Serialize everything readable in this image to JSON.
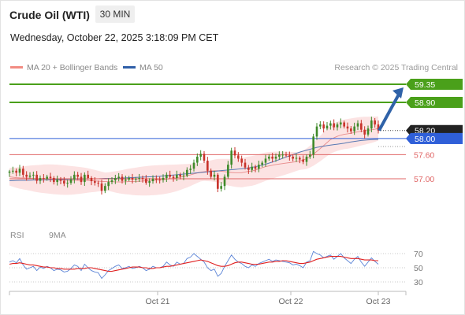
{
  "header": {
    "title": "Crude Oil (WTI)",
    "timeframe": "30 MIN",
    "datetime": "Wednesday, October 22, 2025 3:18:09 PM CET"
  },
  "legend": {
    "bollinger": {
      "label": "MA 20 + Bollinger Bands",
      "color": "#f28b82"
    },
    "ma50": {
      "label": "MA 50",
      "color": "#2f5fa8"
    },
    "research": "Research © 2025 Trading Central"
  },
  "rsi_legend": {
    "rsi": {
      "label": "RSI",
      "color": "#5b84d6"
    },
    "ma9": {
      "label": "9MA",
      "color": "#e02020"
    }
  },
  "chart_data": [
    {
      "type": "candlestick",
      "title": "Crude Oil (WTI)",
      "price_range": [
        56.45,
        59.75
      ],
      "x_tick_labels": [
        "Oct 21",
        "Oct 22",
        "Oct 23"
      ],
      "current_price": 58.2,
      "levels": [
        {
          "label": "59.35",
          "value": 59.35,
          "color": "#4aa01a",
          "kind": "resistance"
        },
        {
          "label": "58.90",
          "value": 58.9,
          "color": "#4aa01a",
          "kind": "resistance"
        },
        {
          "label": "58.00",
          "value": 58.0,
          "color": "#2f5fd8",
          "kind": "pivot"
        },
        {
          "label": "57.60",
          "value": 57.6,
          "color": "#e06666",
          "kind": "support"
        },
        {
          "label": "57.00",
          "value": 57.0,
          "color": "#e06666",
          "kind": "support"
        }
      ],
      "price_label": {
        "label": "58.20",
        "value": 58.2,
        "color": "#222222"
      },
      "target_arrow": {
        "from": 58.2,
        "to": 59.35,
        "color": "#2f62a8"
      },
      "closes": [
        57.18,
        57.2,
        57.15,
        57.25,
        57.1,
        57.05,
        57.08,
        57.1,
        56.95,
        57.02,
        57.0,
        57.05,
        57.02,
        56.92,
        56.98,
        56.95,
        56.88,
        56.9,
        56.98,
        57.1,
        57.05,
        56.92,
        57.1,
        57.02,
        56.94,
        56.9,
        56.88,
        56.7,
        56.82,
        56.92,
        56.96,
        57.02,
        57.05,
        56.95,
        56.98,
        57.02,
        56.98,
        57.0,
        57.02,
        57.0,
        56.9,
        56.94,
        57.0,
        56.98,
        56.97,
        57.02,
        57.1,
        57.05,
        57.02,
        57.1,
        57.06,
        57.08,
        57.22,
        57.25,
        57.4,
        57.55,
        57.62,
        57.45,
        57.2,
        57.05,
        57.1,
        56.75,
        56.82,
        57.05,
        57.35,
        57.7,
        57.58,
        57.5,
        57.4,
        57.28,
        57.22,
        57.3,
        57.25,
        57.35,
        57.4,
        57.5,
        57.55,
        57.5,
        57.55,
        57.6,
        57.6,
        57.58,
        57.55,
        57.5,
        57.52,
        57.48,
        57.42,
        57.55,
        57.6,
        58.05,
        58.3,
        58.35,
        58.25,
        58.32,
        58.38,
        58.28,
        58.35,
        58.4,
        58.3,
        58.25,
        58.18,
        58.3,
        58.38,
        58.22,
        58.1,
        58.25,
        58.45,
        58.35,
        58.2
      ],
      "ma20": [
        57.05,
        57.03,
        57.02,
        57.02,
        57.01,
        57.0,
        57.0,
        56.99,
        56.98,
        56.97,
        56.96,
        56.96,
        56.96,
        56.96,
        56.95,
        56.94,
        56.93,
        56.93,
        56.92,
        56.92,
        56.93,
        56.93,
        56.94,
        56.95,
        56.96,
        56.97,
        56.98,
        57.0,
        57.02,
        57.05,
        57.08,
        57.12,
        57.16,
        57.18,
        57.2,
        57.2,
        57.18,
        57.16,
        57.15,
        57.15,
        57.18,
        57.2,
        57.25,
        57.3,
        57.33,
        57.36,
        57.38,
        57.4,
        57.42,
        57.45,
        57.5,
        57.6,
        57.72,
        57.85,
        57.98,
        58.05,
        58.1,
        58.12,
        58.15,
        58.18,
        58.2,
        58.22,
        58.25
      ],
      "ma50": [
        56.95,
        56.96,
        56.96,
        56.97,
        56.97,
        56.98,
        56.98,
        56.99,
        56.99,
        57.0,
        57.0,
        57.01,
        57.01,
        57.02,
        57.03,
        57.04,
        57.05,
        57.06,
        57.08,
        57.1,
        57.12,
        57.14,
        57.16,
        57.18,
        57.2,
        57.22,
        57.24,
        57.26,
        57.3,
        57.35,
        57.42,
        57.5,
        57.58,
        57.66,
        57.72,
        57.78,
        57.82,
        57.85,
        57.88,
        57.92,
        57.95,
        57.97,
        57.98
      ]
    },
    {
      "type": "line",
      "title": "RSI",
      "ylim": [
        20,
        80
      ],
      "y_tick_labels": [
        "70",
        "50",
        "30"
      ],
      "series": [
        {
          "name": "RSI",
          "color": "#5b84d6",
          "values": [
            58,
            60,
            57,
            63,
            54,
            48,
            50,
            52,
            46,
            51,
            49,
            52,
            50,
            46,
            48,
            47,
            44,
            45,
            49,
            54,
            52,
            46,
            55,
            50,
            46,
            44,
            43,
            35,
            40,
            46,
            49,
            52,
            54,
            49,
            50,
            52,
            49,
            50,
            52,
            50,
            46,
            48,
            52,
            50,
            50,
            52,
            58,
            54,
            52,
            58,
            55,
            56,
            63,
            65,
            70,
            66,
            62,
            58,
            50,
            46,
            48,
            38,
            42,
            52,
            60,
            68,
            62,
            58,
            56,
            52,
            50,
            54,
            52,
            56,
            58,
            60,
            62,
            59,
            61,
            60,
            59,
            58,
            57,
            54,
            55,
            53,
            50,
            58,
            60,
            73,
            70,
            68,
            64,
            66,
            68,
            62,
            66,
            70,
            64,
            60,
            56,
            62,
            66,
            58,
            52,
            58,
            64,
            59,
            55
          ]
        },
        {
          "name": "9MA",
          "color": "#e02020",
          "values": [
            55,
            56,
            56,
            57,
            56,
            55,
            54,
            54,
            53,
            52,
            51,
            51,
            50,
            50,
            49,
            49,
            48,
            48,
            48,
            48,
            49,
            49,
            49,
            50,
            50,
            49,
            48,
            47,
            46,
            45,
            45,
            46,
            47,
            48,
            49,
            50,
            51,
            51,
            51,
            50,
            50,
            49,
            49,
            50,
            50,
            51,
            52,
            52,
            53,
            54,
            55,
            56,
            57,
            58,
            59,
            60,
            61,
            60,
            59,
            57,
            55,
            53,
            52,
            52,
            53,
            55,
            57,
            58,
            58,
            57,
            56,
            55,
            55,
            55,
            56,
            57,
            58,
            58,
            59,
            59,
            60,
            60,
            59,
            58,
            57,
            56,
            56,
            57,
            58,
            60,
            62,
            63,
            64,
            65,
            66,
            66,
            66,
            66,
            65,
            64,
            63,
            63,
            63,
            62,
            61,
            61,
            61,
            60,
            60
          ]
        }
      ]
    }
  ]
}
